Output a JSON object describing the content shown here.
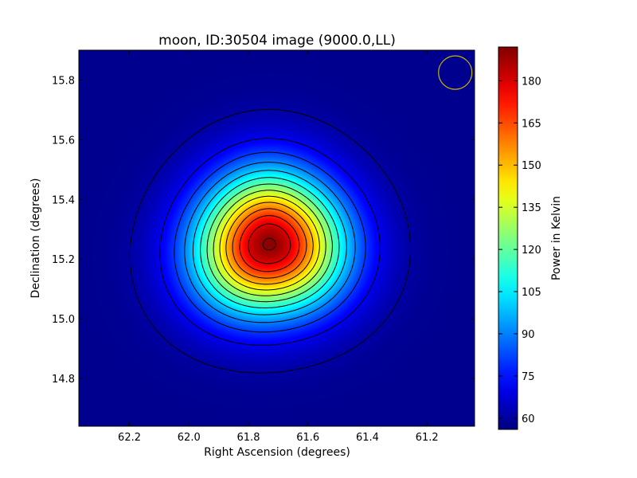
{
  "chart_data": {
    "type": "heatmap",
    "title": "moon, ID:30504 image (9000.0,LL)",
    "xlabel": "Right Ascension (degrees)",
    "ylabel": "Declination (degrees)",
    "xlim": [
      62.37,
      61.04
    ],
    "ylim": [
      14.64,
      15.9
    ],
    "x_ticks": [
      62.2,
      62.0,
      61.8,
      61.6,
      61.4,
      61.2
    ],
    "x_tick_labels": [
      "62.2",
      "62.0",
      "61.8",
      "61.6",
      "61.4",
      "61.2"
    ],
    "y_ticks": [
      14.8,
      15.0,
      15.2,
      15.4,
      15.6,
      15.8
    ],
    "y_tick_labels": [
      "14.8",
      "15.0",
      "15.2",
      "15.4",
      "15.6",
      "15.8"
    ],
    "colorbar": {
      "label": "Power in Kelvin",
      "range": [
        56,
        192
      ],
      "ticks": [
        60,
        75,
        90,
        105,
        120,
        135,
        150,
        165,
        180
      ],
      "tick_labels": [
        "60",
        "75",
        "90",
        "105",
        "120",
        "135",
        "150",
        "165",
        "180"
      ],
      "colormap": "jet"
    },
    "source": {
      "center_ra": 61.73,
      "center_dec": 15.25,
      "peak_kelvin": 190,
      "background_kelvin": 58,
      "sigma_ra_deg": 0.155,
      "sigma_dec_deg": 0.16
    },
    "contour_count": 14,
    "beam_marker": {
      "ra": 61.105,
      "dec": 15.825,
      "color": "#c8b400"
    },
    "contour_color": "#000000",
    "grid": false
  }
}
